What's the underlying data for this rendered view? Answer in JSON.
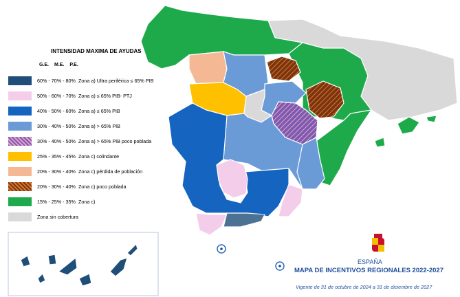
{
  "legend": {
    "title": "INTENSIDAD MAXIMA DE AYUDAS",
    "headers": [
      "G.E.",
      "M.E.",
      "P.E."
    ],
    "items": [
      {
        "range": "60% - 70% - 80%",
        "label": "Zona a) Ultra periférica ≤ 65% PIB",
        "color": "#1f4e79"
      },
      {
        "range": "50% - 60% - 70%",
        "label": "Zona a) ≤ 65% PIB- PTJ",
        "color": "#f4cdea"
      },
      {
        "range": "40% - 50% - 60%",
        "label": "Zona a) ≤ 65% PIB",
        "color": "#1565c0"
      },
      {
        "range": "30% - 40% - 50%",
        "label": "Zona a) > 65% PIB",
        "color": "#6b9bd6"
      },
      {
        "range": "30% - 40% - 50%",
        "label": "Zona a) > 65% PIB poco poblada",
        "color": "#7b5bb0",
        "pattern": "hatch-purple"
      },
      {
        "range": "25% - 35% - 45%",
        "label": "Zona c) colindante",
        "color": "#ffc000"
      },
      {
        "range": "20% - 30% - 40%",
        "label": "Zona c) pérdida de población",
        "color": "#f4b994"
      },
      {
        "range": "20% - 30% - 40%",
        "label": "Zona c) poco poblada",
        "color": "#7a3410",
        "pattern": "hatch-brown"
      },
      {
        "range": "15% - 25% - 35%",
        "label": "Zona c)",
        "color": "#1eaa4b"
      },
      {
        "label": "Zona sin cobertura",
        "color": "#d9d9d9"
      }
    ]
  },
  "footer": {
    "country": "ESPAÑA",
    "title": "MAPA DE INCENTIVOS REGIONALES 2022-2027",
    "validity": "Vigente de 31 de octubre de 2024 a 31 de diciembre de 2027"
  }
}
